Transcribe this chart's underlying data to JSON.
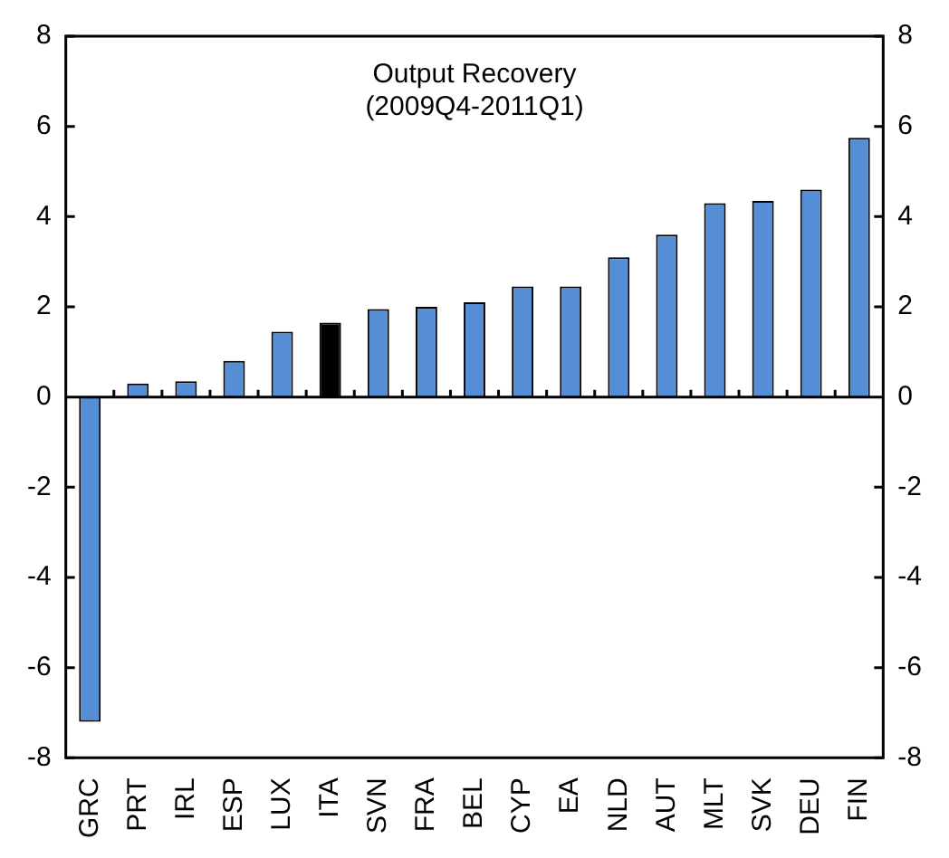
{
  "chart_data": {
    "type": "bar",
    "title": "Output Recovery\n(2009Q4-2011Q1)",
    "categories": [
      "GRC",
      "PRT",
      "IRL",
      "ESP",
      "LUX",
      "ITA",
      "SVN",
      "FRA",
      "BEL",
      "CYP",
      "EA",
      "NLD",
      "AUT",
      "MLT",
      "SVK",
      "DEU",
      "FIN"
    ],
    "values": [
      -7.2,
      0.3,
      0.35,
      0.8,
      1.45,
      1.65,
      1.95,
      2.0,
      2.1,
      2.45,
      2.45,
      3.1,
      3.6,
      4.3,
      4.35,
      4.6,
      5.75
    ],
    "colors": [
      "#558ed5",
      "#558ed5",
      "#558ed5",
      "#558ed5",
      "#558ed5",
      "#000000",
      "#558ed5",
      "#558ed5",
      "#558ed5",
      "#558ed5",
      "#558ed5",
      "#558ed5",
      "#558ed5",
      "#558ed5",
      "#558ed5",
      "#558ed5",
      "#558ed5"
    ],
    "ylim": [
      -8,
      8
    ],
    "yticks": [
      -8,
      -6,
      -4,
      -2,
      0,
      2,
      4,
      6,
      8
    ],
    "y2lim": [
      -8,
      8
    ],
    "y2ticks": [
      -8,
      -6,
      -4,
      -2,
      0,
      2,
      4,
      6,
      8
    ],
    "legend": false
  }
}
